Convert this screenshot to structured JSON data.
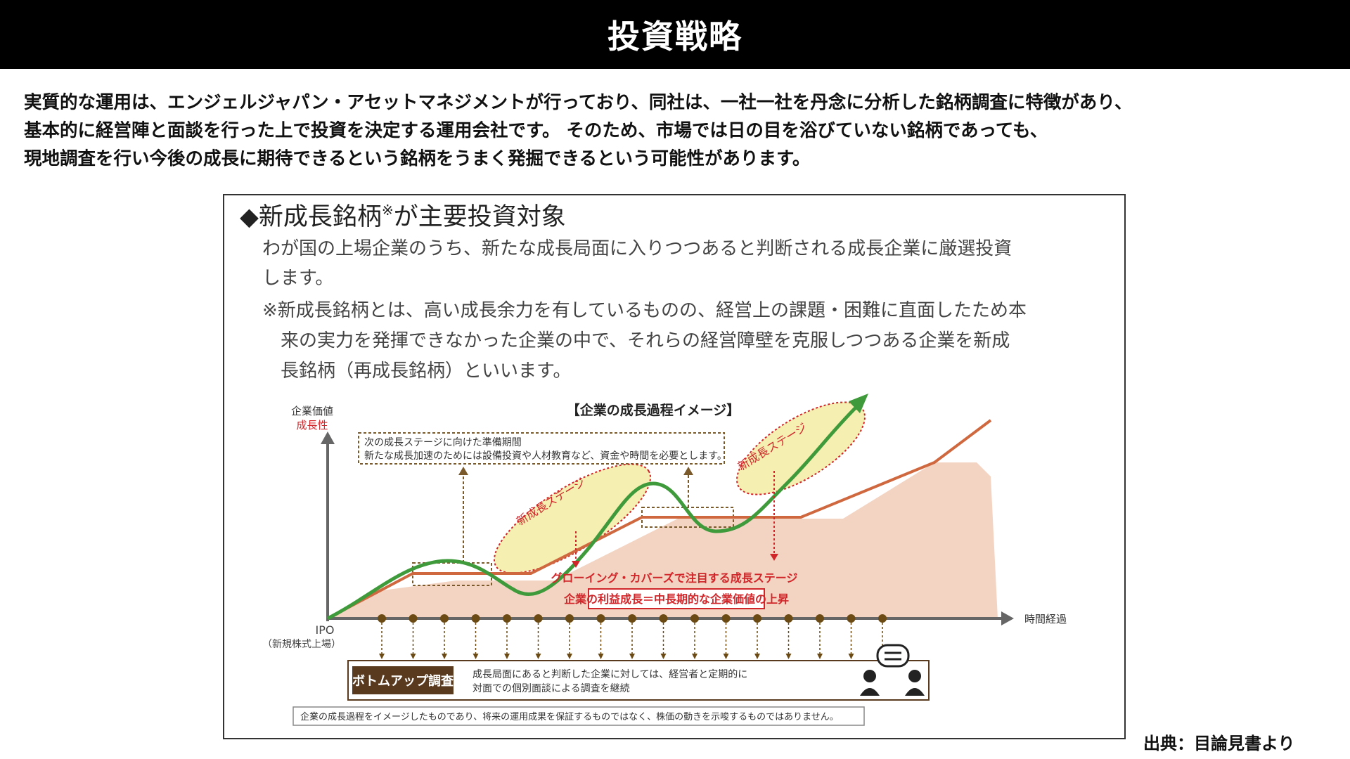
{
  "header": {
    "title": "投資戦略"
  },
  "intro": {
    "lines": [
      "実質的な運用は、エンジェルジャパン・アセットマネジメントが行っており、同社は、一社一社を丹念に分析した銘柄調査に特徴があり、",
      "基本的に経営陣と面談を行った上で投資を決定する運用会社です。 そのため、市場では日の目を浴びていない銘柄であっても、",
      "現地調査を行い今後の成長に期待できるという銘柄をうまく発掘できるという可能性があります。"
    ]
  },
  "figure": {
    "heading": "◆新成長銘柄",
    "heading_mark": "※",
    "heading_suffix": "が主要投資対象",
    "desc_lines": [
      "わが国の上場企業のうち、新たな成長局面に入りつつあると判断される成長企業に厳選投資",
      "します。"
    ],
    "note_lines": [
      "※新成長銘柄とは、高い成長余力を有しているものの、経営上の課題・困難に直面したため本",
      "来の実力を発揮できなかった企業の中で、それらの経営障壁を克服しつつある企業を新成",
      "長銘柄（再成長銘柄）といいます。"
    ],
    "diagram": {
      "title": "【企業の成長過程イメージ】",
      "y_axis_label": "企業価値",
      "y_axis_label2": "成長性",
      "x_axis_label": "時間経過",
      "origin_label": "IPO",
      "origin_sub": "（新規株式上場）",
      "prep_title": "次の成長ステージに向けた準備期間",
      "prep_text": "新たな成長加速のためには設備投資や人材教育など、資金や時間を必要とします。",
      "stage_label_1": "新成長ステージ",
      "stage_label_2": "新成長ステージ",
      "growing_label": "グローイング・カバーズで注目する成長ステージ",
      "profit_label": "企業の利益成長＝中長期的な企業価値の上昇",
      "bottomup_label": "ボトムアップ調査",
      "bottomup_text_1": "成長局面にあると判断した企業に対しては、経営者と定期的に",
      "bottomup_text_2": "対面での個別面談による調査を継続",
      "disclaimer": "企業の成長過程をイメージしたものであり、将来の運用成果を保証するものではなく、株価の動きを示唆するものではありません。",
      "icons": [
        "meeting-icon"
      ],
      "colors": {
        "green_line": "#3e9a3a",
        "orange_line": "#d0683f",
        "area_fill": "#f3d4c2",
        "ellipse_fill": "#f4eca4",
        "ellipse_border": "#d0262a",
        "red_text": "#d0262a",
        "brown_box": "#5a3a1e",
        "dot": "#6b4a14"
      }
    }
  },
  "source_note": "出典：目論見書より"
}
